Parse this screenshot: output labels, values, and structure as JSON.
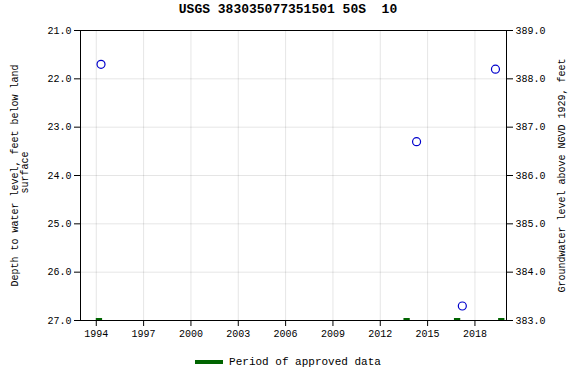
{
  "chart_data": {
    "type": "scatter",
    "title": "USGS 383035077351501 50S  10",
    "ylabel": "Depth to water level, feet below land\n surface",
    "y2label": "Groundwater level above NGVD 1929, feet",
    "xlim": [
      1993,
      2020
    ],
    "xticks": [
      1994,
      1997,
      2000,
      2003,
      2006,
      2009,
      2012,
      2015,
      2018
    ],
    "ylim": [
      27.0,
      21.0
    ],
    "yticks": [
      {
        "value": 21.0,
        "label": "21.0"
      },
      {
        "value": 22.0,
        "label": "22.0"
      },
      {
        "value": 23.0,
        "label": "23.0"
      },
      {
        "value": 24.0,
        "label": "24.0"
      },
      {
        "value": 25.0,
        "label": "25.0"
      },
      {
        "value": 26.0,
        "label": "26.0"
      },
      {
        "value": 27.0,
        "label": "27.0"
      }
    ],
    "y2lim": [
      383.0,
      389.0
    ],
    "y2ticks": [
      {
        "value": 383.0,
        "label": "383.0"
      },
      {
        "value": 384.0,
        "label": "384.0"
      },
      {
        "value": 385.0,
        "label": "385.0"
      },
      {
        "value": 386.0,
        "label": "386.0"
      },
      {
        "value": 387.0,
        "label": "387.0"
      },
      {
        "value": 388.0,
        "label": "388.0"
      },
      {
        "value": 389.0,
        "label": "389.0"
      }
    ],
    "grid": true,
    "legend": "bottom",
    "series": [
      {
        "type": "scatter",
        "marker": "circle-open",
        "color": "#0000cc",
        "x": [
          1994.3,
          2014.3,
          2017.2,
          2019.3
        ],
        "values": [
          21.7,
          23.3,
          26.7,
          21.8
        ]
      },
      {
        "name": "Period of approved data",
        "type": "segment",
        "color": "#006400",
        "x_start": [
          1994.0,
          2013.5,
          2016.7,
          2019.5
        ],
        "x_end": [
          1994.4,
          2013.9,
          2017.1,
          2019.9
        ],
        "values": [
          27.0,
          27.0,
          27.0,
          27.0
        ]
      }
    ]
  }
}
